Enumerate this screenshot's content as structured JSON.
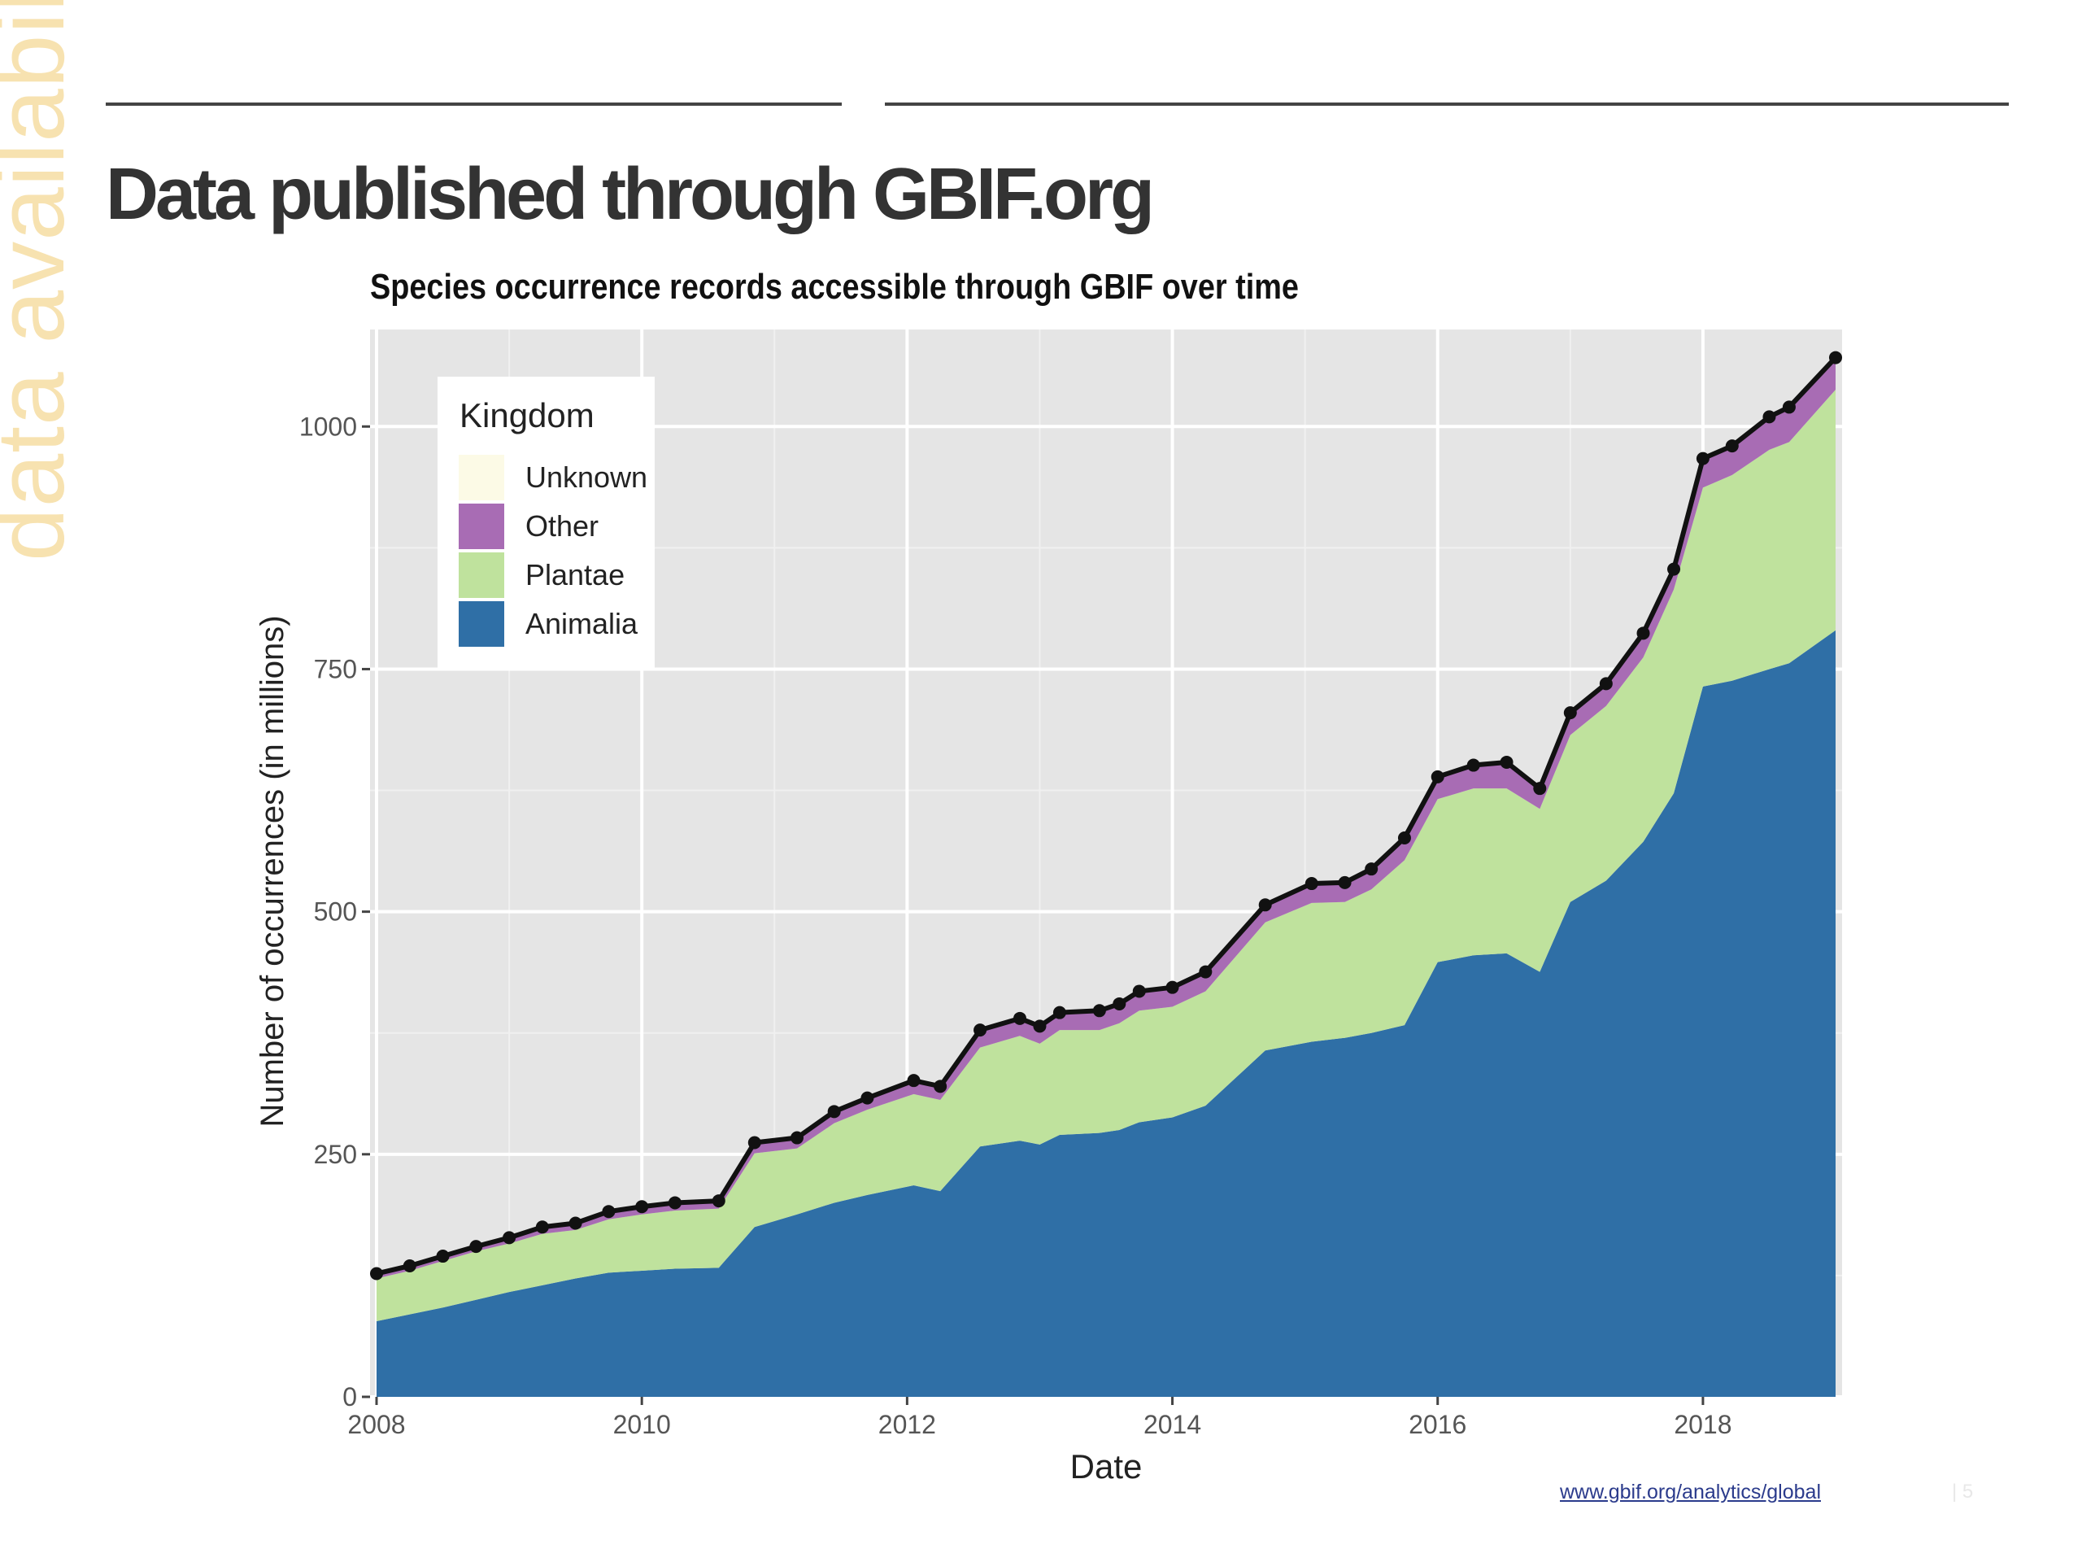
{
  "slide": {
    "side_label": "data availability",
    "title": "Data published through GBIF.org",
    "source_link": "www.gbif.org/analytics/global",
    "page_number": "|   5"
  },
  "colors": {
    "animalia": "#2f6fa6",
    "plantae": "#bfe29d",
    "other": "#a86cb4",
    "unknown": "#fcfae6",
    "panel": "#e5e5e5",
    "grid": "#ffffff",
    "total_line": "#111111"
  },
  "chart_data": {
    "type": "area",
    "stacked": true,
    "title": "Species occurrence records accessible through GBIF over time",
    "xlabel": "Date",
    "ylabel": "Number of occurrences (in millions)",
    "xlim": [
      2008,
      2019
    ],
    "ylim": [
      0,
      1100
    ],
    "x_ticks": [
      2008,
      2010,
      2012,
      2014,
      2016,
      2018
    ],
    "y_ticks": [
      0,
      250,
      500,
      750,
      1000
    ],
    "legend": {
      "title": "Kingdom",
      "position": "top-left",
      "entries": [
        {
          "label": "Unknown",
          "key": "unknown"
        },
        {
          "label": "Other",
          "key": "other"
        },
        {
          "label": "Plantae",
          "key": "plantae"
        },
        {
          "label": "Animalia",
          "key": "animalia"
        }
      ]
    },
    "x": [
      2008.0,
      2008.25,
      2008.5,
      2008.75,
      2009.0,
      2009.25,
      2009.5,
      2009.75,
      2010.0,
      2010.25,
      2010.58,
      2010.85,
      2011.17,
      2011.45,
      2011.7,
      2012.05,
      2012.25,
      2012.55,
      2012.85,
      2013.0,
      2013.15,
      2013.45,
      2013.6,
      2013.75,
      2014.0,
      2014.25,
      2014.7,
      2015.05,
      2015.3,
      2015.5,
      2015.75,
      2016.0,
      2016.27,
      2016.52,
      2016.77,
      2017.0,
      2017.27,
      2017.55,
      2017.78,
      2018.0,
      2018.22,
      2018.5,
      2018.65,
      2019.0
    ],
    "series": [
      {
        "name": "Animalia",
        "key": "animalia",
        "values": [
          78,
          85,
          92,
          100,
          108,
          115,
          122,
          128,
          130,
          132,
          133,
          175,
          188,
          200,
          208,
          218,
          212,
          258,
          264,
          260,
          270,
          272,
          275,
          283,
          288,
          300,
          357,
          366,
          370,
          375,
          383,
          448,
          455,
          457,
          438,
          510,
          532,
          572,
          622,
          732,
          738,
          750,
          756,
          790
        ]
      },
      {
        "name": "Plantae",
        "key": "plantae",
        "values": [
          44,
          45,
          48,
          50,
          50,
          53,
          50,
          55,
          58,
          60,
          61,
          76,
          68,
          82,
          88,
          94,
          94,
          102,
          108,
          104,
          108,
          106,
          110,
          115,
          114,
          118,
          132,
          143,
          140,
          148,
          170,
          168,
          172,
          170,
          168,
          172,
          180,
          190,
          210,
          205,
          212,
          226,
          228,
          248
        ]
      },
      {
        "name": "Other",
        "key": "other",
        "values": [
          4,
          4,
          4,
          4,
          5,
          6,
          6,
          7,
          7,
          7,
          7,
          10,
          10,
          11,
          11,
          13,
          13,
          17,
          17,
          17,
          17,
          19,
          19,
          19,
          19,
          19,
          17,
          19,
          19,
          20,
          22,
          22,
          23,
          26,
          20,
          22,
          22,
          24,
          20,
          29,
          29,
          33,
          35,
          32
        ]
      },
      {
        "name": "Unknown",
        "key": "unknown",
        "values": [
          1,
          1,
          1,
          1,
          1,
          1,
          1,
          1,
          1,
          1,
          1,
          1,
          1,
          1,
          1,
          1,
          1,
          1,
          1,
          1,
          1,
          1,
          1,
          1,
          1,
          1,
          1,
          1,
          1,
          1,
          1,
          1,
          1,
          1,
          1,
          1,
          1,
          1,
          1,
          1,
          1,
          1,
          1,
          1
        ]
      }
    ],
    "total": [
      127,
      135,
      145,
      155,
      164,
      175,
      179,
      191,
      196,
      200,
      202,
      262,
      267,
      294,
      308,
      326,
      320,
      378,
      390,
      382,
      396,
      398,
      405,
      418,
      422,
      438,
      507,
      529,
      530,
      544,
      576,
      639,
      651,
      654,
      627,
      705,
      735,
      787,
      853,
      967,
      980,
      1010,
      1020,
      1071
    ],
    "total_series": {
      "style": "black line with dot markers"
    }
  }
}
